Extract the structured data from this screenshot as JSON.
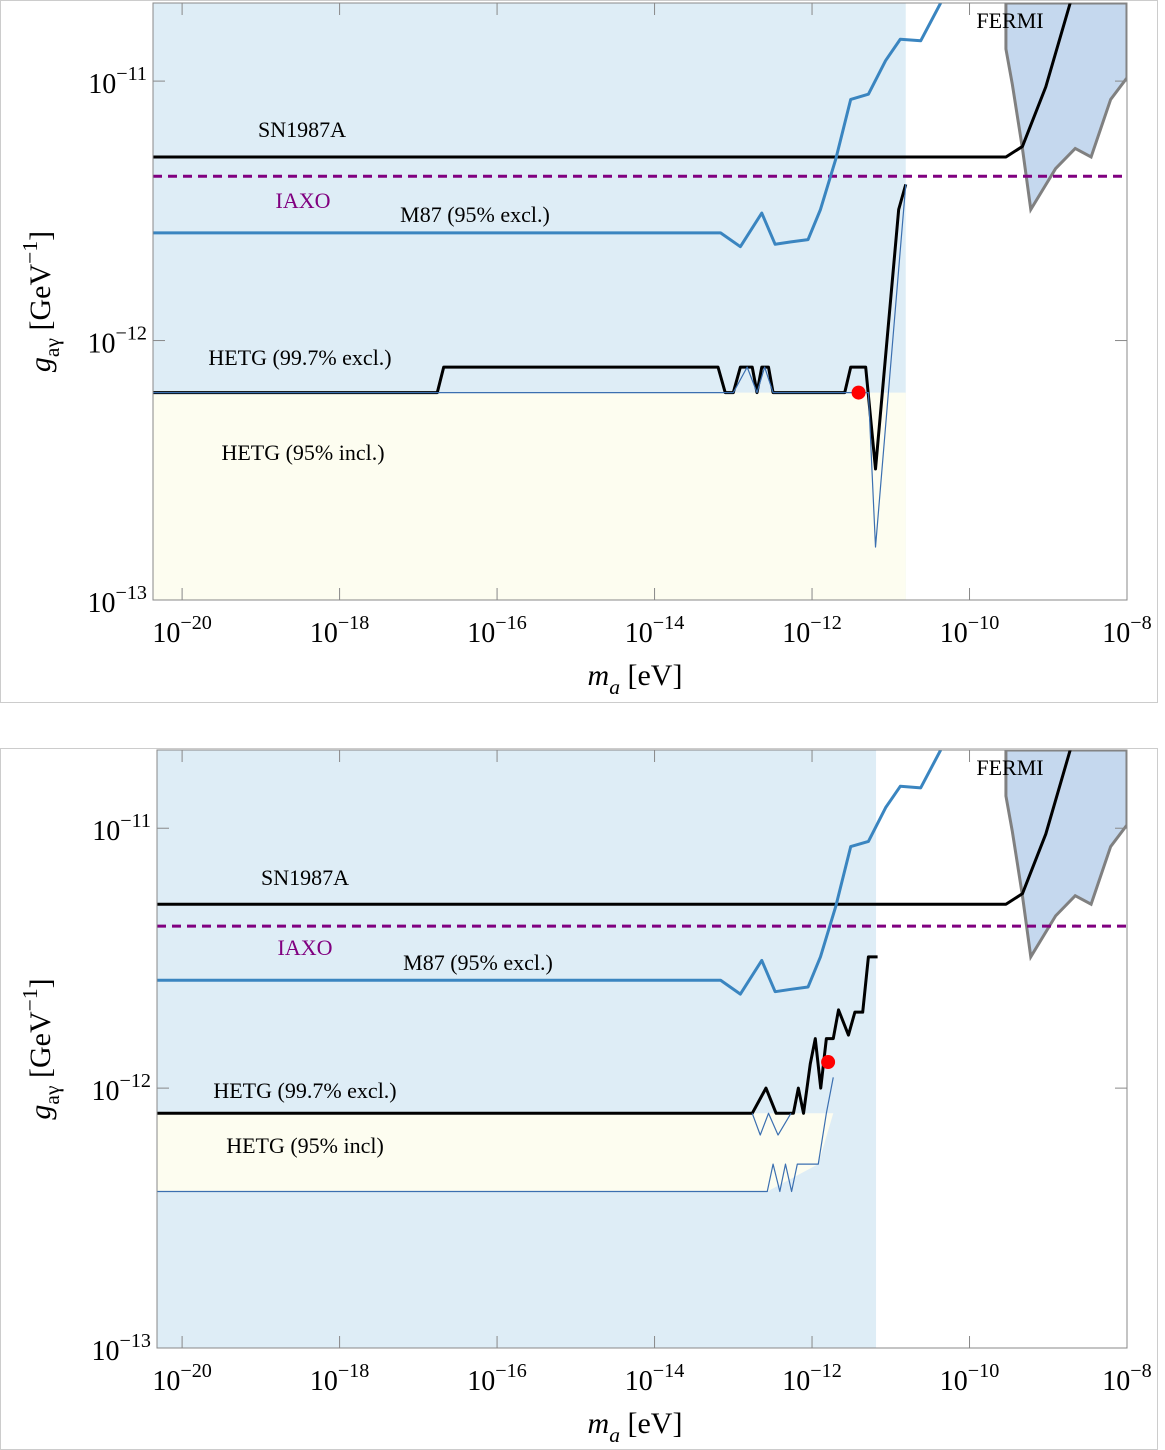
{
  "chart_data": [
    {
      "type": "line",
      "xscale": "log",
      "yscale": "log",
      "x_label": "ma [eV]",
      "y_label": "gaγ [GeV−1]",
      "xlim": [
        4.27e-21,
        1e-08
      ],
      "ylim": [
        1e-13,
        2e-11
      ],
      "xticks": [
        {
          "value": 1e-20,
          "label": "10−20"
        },
        {
          "value": 1e-18,
          "label": "10−18"
        },
        {
          "value": 1e-16,
          "label": "10−16"
        },
        {
          "value": 1e-14,
          "label": "10−14"
        },
        {
          "value": 1e-12,
          "label": "10−12"
        },
        {
          "value": 1e-10,
          "label": "10−10"
        },
        {
          "value": 1e-08,
          "label": "10−8"
        }
      ],
      "yticks": [
        {
          "value": 1e-13,
          "label": "10−13"
        },
        {
          "value": 1e-12,
          "label": "10−12"
        },
        {
          "value": 1e-11,
          "label": "10−11"
        }
      ],
      "regions": [
        {
          "color": "#deedf6",
          "x": [
            4.27e-21,
            1.55e-11,
            1.55e-11,
            4.27e-21
          ],
          "y": [
            1e-13,
            1e-13,
            2e-11,
            2e-11
          ]
        },
        {
          "name": "HETG (95% incl.)",
          "color": "#fdfdf0",
          "x": [
            4.27e-21,
            1.55e-11,
            1.55e-11,
            4.27e-21
          ],
          "y": [
            1e-13,
            1e-13,
            6.3e-13,
            6.3e-13
          ]
        },
        {
          "name": "FERMI",
          "color": "#c5d8ee",
          "edgecolor": "#808080",
          "x": [
            2.9e-10,
            2.9e-10,
            3.5e-10,
            4.7e-10,
            6e-10,
            1.24e-09,
            2.2e-09,
            3.5e-09,
            6.2e-09,
            1e-08,
            1e-08
          ],
          "y": [
            2e-11,
            1.33e-11,
            9.7e-12,
            5.5e-12,
            3.2e-12,
            4.6e-12,
            5.5e-12,
            5.1e-12,
            8.5e-12,
            1.03e-11,
            2e-11
          ]
        }
      ],
      "series": [
        {
          "name": "SN1987A",
          "color": "#000000",
          "x": [
            4.27e-21,
            2.9e-10,
            4.7e-10,
            9.3e-10,
            1.9e-09
          ],
          "values": [
            5.1e-12,
            5.1e-12,
            5.6e-12,
            9.5e-12,
            2e-11
          ]
        },
        {
          "name": "IAXO",
          "color": "#800080",
          "dash": true,
          "x": [
            4.27e-21,
            1e-08
          ],
          "values": [
            4.3e-12,
            4.3e-12
          ]
        },
        {
          "name": "M87 (95% excl.)",
          "color": "#3a85c0",
          "x": [
            4.27e-21,
            5.1e-14,
            6.9e-14,
            1.23e-13,
            2.3e-13,
            3.4e-13,
            5.4e-13,
            8.9e-13,
            1.28e-12,
            2e-12,
            3.1e-12,
            5.2e-12,
            8.6e-12,
            1.32e-11,
            2.4e-11,
            4.3e-11
          ],
          "values": [
            2.6e-12,
            2.6e-12,
            2.6e-12,
            2.3e-12,
            3.1e-12,
            2.35e-12,
            2.4e-12,
            2.45e-12,
            3.2e-12,
            5e-12,
            8.5e-12,
            8.9e-12,
            1.2e-11,
            1.45e-11,
            1.43e-11,
            2e-11
          ]
        },
        {
          "name": "HETG (99.7% excl.)",
          "color": "#000000",
          "x": [
            4.27e-21,
            1.74e-17,
            2.1e-17,
            6.4e-14,
            7.9e-14,
            1e-13,
            1.23e-13,
            1.74e-13,
            2e-13,
            2.3e-13,
            2.8e-13,
            3.2e-13,
            2.6e-12,
            3.1e-12,
            4.8e-12,
            6.4e-12,
            1.26e-11,
            1.55e-11
          ],
          "values": [
            6.3e-13,
            6.3e-13,
            7.9e-13,
            7.9e-13,
            6.3e-13,
            6.3e-13,
            7.9e-13,
            7.9e-13,
            6.3e-13,
            7.9e-13,
            7.9e-13,
            6.3e-13,
            6.3e-13,
            7.9e-13,
            7.9e-13,
            3.2e-13,
            3.2e-12,
            4e-12
          ]
        },
        {
          "color": "#3b6fb0",
          "x": [
            4.27e-21,
            1e-13,
            1.5e-13,
            2e-13,
            2.5e-13,
            3.2e-13,
            5.2e-12,
            6.4e-12,
            1.55e-11
          ],
          "values": [
            6.3e-13,
            6.3e-13,
            7.9e-13,
            6.3e-13,
            7.9e-13,
            6.3e-13,
            6.3e-13,
            1.6e-13,
            4e-12
          ]
        }
      ],
      "points": [
        {
          "x": 3.9e-12,
          "y": 6.3e-13,
          "color": "#ff0000"
        }
      ]
    },
    {
      "type": "line",
      "xscale": "log",
      "yscale": "log",
      "x_label": "ma [eV]",
      "y_label": "gaγ [GeV−1]",
      "xlim": [
        4.8e-21,
        1e-08
      ],
      "ylim": [
        1e-13,
        2e-11
      ],
      "xticks": [
        {
          "value": 1e-20,
          "label": "10−20"
        },
        {
          "value": 1e-18,
          "label": "10−18"
        },
        {
          "value": 1e-16,
          "label": "10−16"
        },
        {
          "value": 1e-14,
          "label": "10−14"
        },
        {
          "value": 1e-12,
          "label": "10−12"
        },
        {
          "value": 1e-10,
          "label": "10−10"
        },
        {
          "value": 1e-08,
          "label": "10−8"
        }
      ],
      "yticks": [
        {
          "value": 1e-13,
          "label": "10−13"
        },
        {
          "value": 1e-12,
          "label": "10−12"
        },
        {
          "value": 1e-11,
          "label": "10−11"
        }
      ],
      "regions": [
        {
          "color": "#deedf6",
          "x": [
            4.8e-21,
            6.5e-12,
            6.5e-12,
            4.8e-21
          ],
          "y": [
            1e-13,
            1e-13,
            2e-11,
            2e-11
          ]
        },
        {
          "name": "HETG (95% incl)",
          "color": "#fdfdf0",
          "x": [
            4.8e-21,
            2.7e-13,
            1.2e-12,
            1.86e-12,
            4.8e-21
          ],
          "y": [
            4e-13,
            4e-13,
            5.1e-13,
            8e-13,
            8e-13
          ]
        },
        {
          "name": "FERMI",
          "color": "#c5d8ee",
          "edgecolor": "#808080",
          "x": [
            2.9e-10,
            2.9e-10,
            3.5e-10,
            4.7e-10,
            6e-10,
            1.24e-09,
            2.2e-09,
            3.5e-09,
            6.2e-09,
            1e-08,
            1e-08
          ],
          "y": [
            2e-11,
            1.33e-11,
            9.7e-12,
            5.5e-12,
            3.2e-12,
            4.6e-12,
            5.5e-12,
            5.1e-12,
            8.5e-12,
            1.03e-11,
            2e-11
          ]
        }
      ],
      "series": [
        {
          "name": "SN1987A",
          "color": "#000000",
          "x": [
            4.8e-21,
            2.9e-10,
            4.7e-10,
            9.3e-10,
            1.9e-09
          ],
          "values": [
            5.1e-12,
            5.1e-12,
            5.6e-12,
            9.5e-12,
            2e-11
          ]
        },
        {
          "name": "IAXO",
          "color": "#800080",
          "dash": true,
          "x": [
            4.8e-21,
            1e-08
          ],
          "values": [
            4.2e-12,
            4.2e-12
          ]
        },
        {
          "name": "M87 (95% excl.)",
          "color": "#3a85c0",
          "x": [
            4.8e-21,
            5.1e-14,
            6.9e-14,
            1.23e-13,
            2.3e-13,
            3.4e-13,
            5.4e-13,
            8.9e-13,
            1.28e-12,
            2e-12,
            3.1e-12,
            5.2e-12,
            8.6e-12,
            1.32e-11,
            2.4e-11,
            4.3e-11
          ],
          "values": [
            2.6e-12,
            2.6e-12,
            2.6e-12,
            2.3e-12,
            3.1e-12,
            2.35e-12,
            2.4e-12,
            2.45e-12,
            3.2e-12,
            5e-12,
            8.5e-12,
            8.9e-12,
            1.2e-11,
            1.45e-11,
            1.43e-11,
            2e-11
          ]
        },
        {
          "name": "HETG (99.7% excl.)",
          "color": "#000000",
          "x": [
            4.8e-21,
            1.74e-13,
            2.6e-13,
            3.5e-13,
            5.8e-13,
            6.7e-13,
            7.8e-13,
            9.5e-13,
            1.1e-12,
            1.29e-12,
            1.52e-12,
            1.86e-12,
            2.17e-12,
            2.9e-12,
            3.5e-12,
            4.4e-12,
            5.2e-12,
            6.8e-12
          ],
          "values": [
            8e-13,
            8e-13,
            1e-12,
            8e-13,
            8e-13,
            1e-12,
            8e-13,
            1.24e-12,
            1.55e-12,
            1e-12,
            1.55e-12,
            1.55e-12,
            2e-12,
            1.6e-12,
            1.96e-12,
            1.96e-12,
            3.2e-12,
            3.2e-12
          ]
        },
        {
          "color": "#3b6fb0",
          "x": [
            4.8e-21,
            2.7e-13,
            3.2e-13,
            3.9e-13,
            4.6e-13,
            5.5e-13,
            6.5e-13,
            1.2e-12,
            1.52e-12,
            1.86e-12,
            null,
            1.74e-13,
            2.2e-13,
            2.8e-13,
            3.7e-13,
            5.4e-13
          ],
          "values": [
            4e-13,
            4e-13,
            5.1e-13,
            4e-13,
            5.1e-13,
            4e-13,
            5.1e-13,
            5.1e-13,
            8e-13,
            1.1e-12,
            null,
            8e-13,
            6.6e-13,
            8e-13,
            6.6e-13,
            8e-13
          ]
        }
      ],
      "points": [
        {
          "x": 1.6e-12,
          "y": 1.26e-12,
          "color": "#ff0000"
        }
      ]
    }
  ]
}
